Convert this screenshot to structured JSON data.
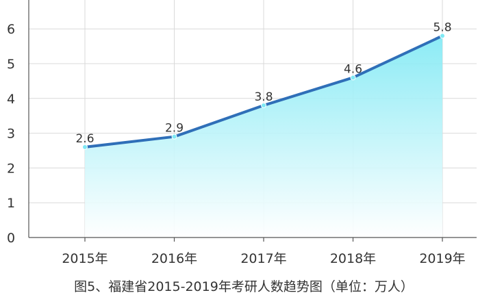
{
  "chart_data": {
    "type": "area",
    "categories": [
      "2015年",
      "2016年",
      "2017年",
      "2018年",
      "2019年"
    ],
    "series": [
      {
        "values": [
          2.6,
          2.9,
          3.8,
          4.6,
          5.8
        ]
      }
    ],
    "data_labels": [
      "2.6",
      "2.9",
      "3.8",
      "4.6",
      "5.8"
    ],
    "y_ticks": [
      "0",
      "1",
      "2",
      "3",
      "4",
      "5",
      "6"
    ],
    "ylim": [
      0,
      6.8
    ],
    "grid": true,
    "caption": "图5、福建省2015-2019年考研人数趋势图（单位：万人）",
    "colors": {
      "line": "#2f6fb8",
      "fill_top": "#7fe9f4",
      "fill_bottom": "#ffffff",
      "marker": "#7fe9f4",
      "grid": "#d9d9d9",
      "axis": "#555555"
    }
  }
}
